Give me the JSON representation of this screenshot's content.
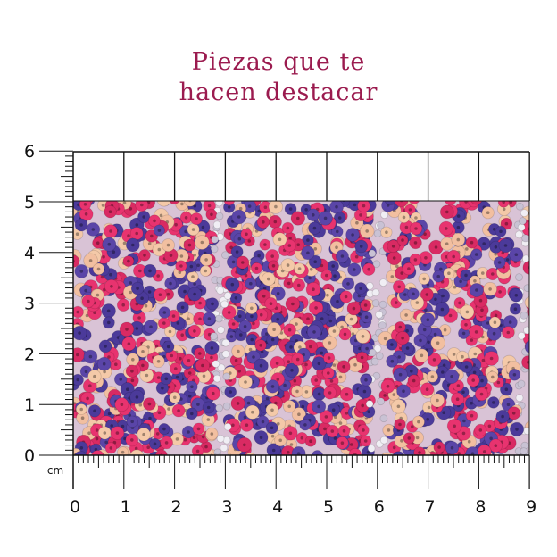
{
  "header": {
    "title_lines": [
      "Piezas que te",
      "hacen destacar"
    ]
  },
  "ruler": {
    "unit": "cm",
    "x_labels": [
      "0",
      "1",
      "2",
      "3",
      "4",
      "5",
      "6",
      "7",
      "8",
      "9"
    ],
    "y_labels": [
      "0",
      "1",
      "2",
      "3",
      "4",
      "5",
      "6"
    ]
  }
}
